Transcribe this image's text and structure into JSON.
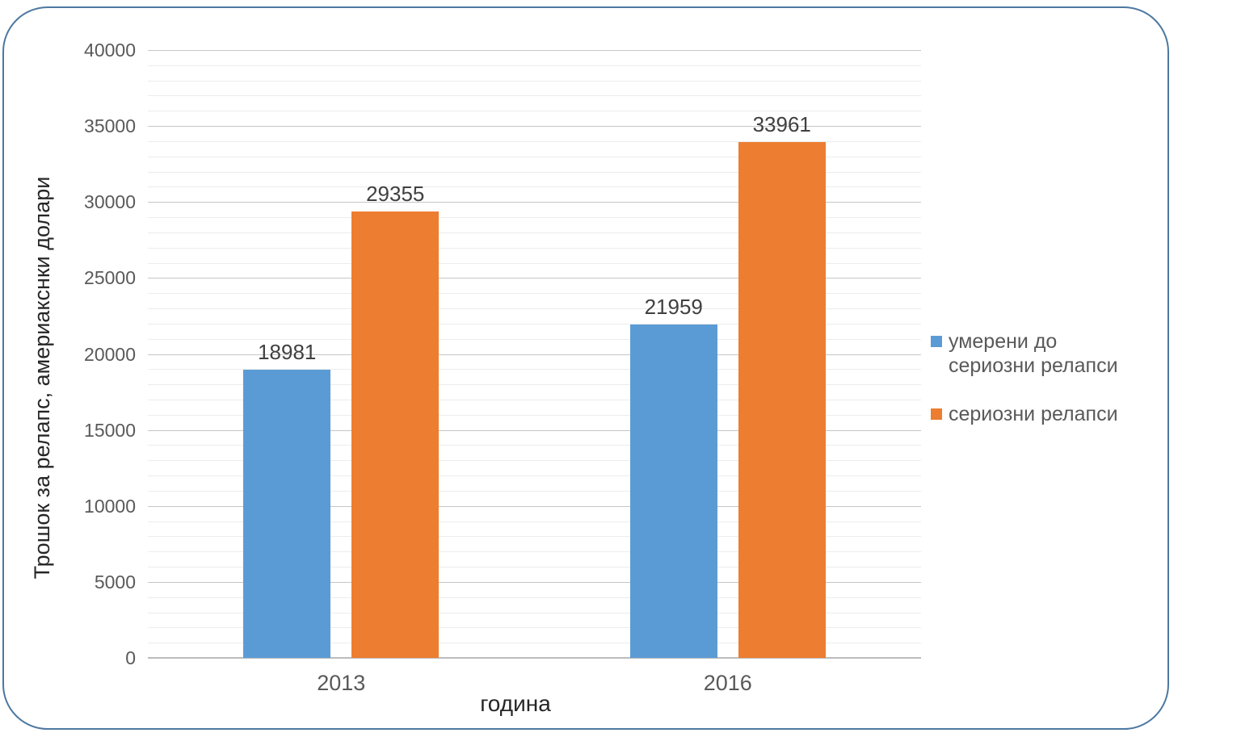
{
  "chart_data": {
    "type": "bar",
    "title": "",
    "categories": [
      "2013",
      "2016"
    ],
    "series": [
      {
        "name": "умерени до сериозни релапси",
        "color": "#5B9BD5",
        "values": [
          18981,
          21959
        ]
      },
      {
        "name": "сериозни релапси",
        "color": "#ED7D31",
        "values": [
          29355,
          33961
        ]
      }
    ],
    "data_labels": [
      [
        "18981",
        "21959"
      ],
      [
        "29355",
        "33961"
      ]
    ],
    "xlabel": "година",
    "ylabel": "Трошок за релапс, америакснки долари",
    "ylim": [
      0,
      40000
    ],
    "y_major_step": 5000,
    "y_minor_step": 1000,
    "y_ticks": [
      "0",
      "5000",
      "10000",
      "15000",
      "20000",
      "25000",
      "30000",
      "35000",
      "40000"
    ],
    "grid": "major+minor horizontal",
    "legend_position": "right",
    "bar_label_position": "above"
  },
  "colors": {
    "frame_border": "#4D78A0",
    "major_gridline": "#C6C6C6",
    "minor_gridline": "#ECECEC",
    "axis_line": "#BCBCBC",
    "tick_text": "#595959",
    "data_label_text": "#404040",
    "axis_title_text": "#262626",
    "legend_text": "#595959",
    "background": "#FFFFFF"
  }
}
